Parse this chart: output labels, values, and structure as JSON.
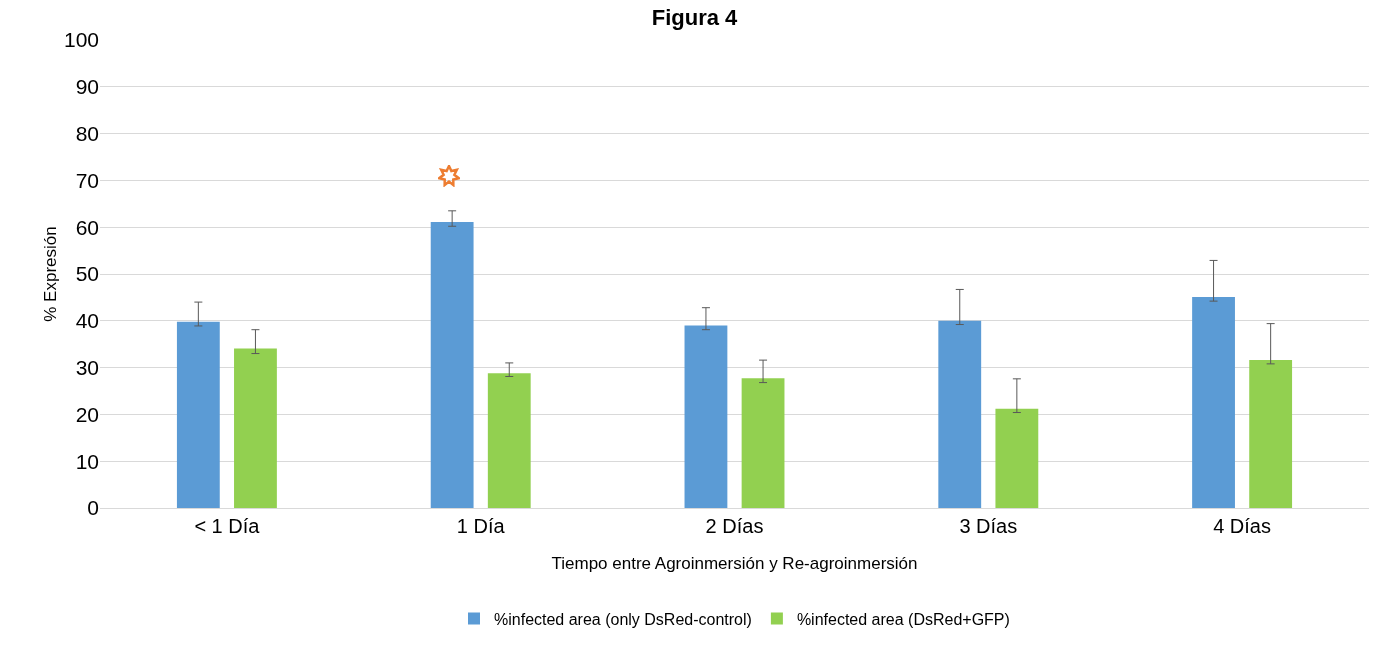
{
  "chart_data": {
    "type": "bar",
    "title": "Figura 4",
    "xlabel": "Tiempo entre Agroinmersión y Re-agroinmersión",
    "ylabel": "% Expresión",
    "categories": [
      "< 1 Día",
      "1 Día",
      "2 Días",
      "3 Días",
      "4 Días"
    ],
    "series": [
      {
        "name": "%infected area (only DsRed-control)",
        "color": "#5b9bd5",
        "values": [
          39.8,
          61.1,
          39.0,
          40.0,
          45.1
        ],
        "errors": [
          [
            38.9,
            44.0
          ],
          [
            60.2,
            63.5
          ],
          [
            38.1,
            42.8
          ],
          [
            39.2,
            46.7
          ],
          [
            44.2,
            52.9
          ]
        ]
      },
      {
        "name": "%infected area (DsRed+GFP)",
        "color": "#92d050",
        "values": [
          34.1,
          28.8,
          27.7,
          21.2,
          31.6
        ],
        "errors": [
          [
            33.0,
            38.1
          ],
          [
            28.1,
            31.0
          ],
          [
            26.8,
            31.6
          ],
          [
            20.4,
            27.6
          ],
          [
            30.8,
            39.4
          ]
        ]
      }
    ],
    "ylim": [
      0,
      100
    ],
    "yticks": [
      0,
      10,
      20,
      30,
      40,
      50,
      60,
      70,
      80,
      90,
      100
    ],
    "grid": "y",
    "legend": "bottom"
  }
}
